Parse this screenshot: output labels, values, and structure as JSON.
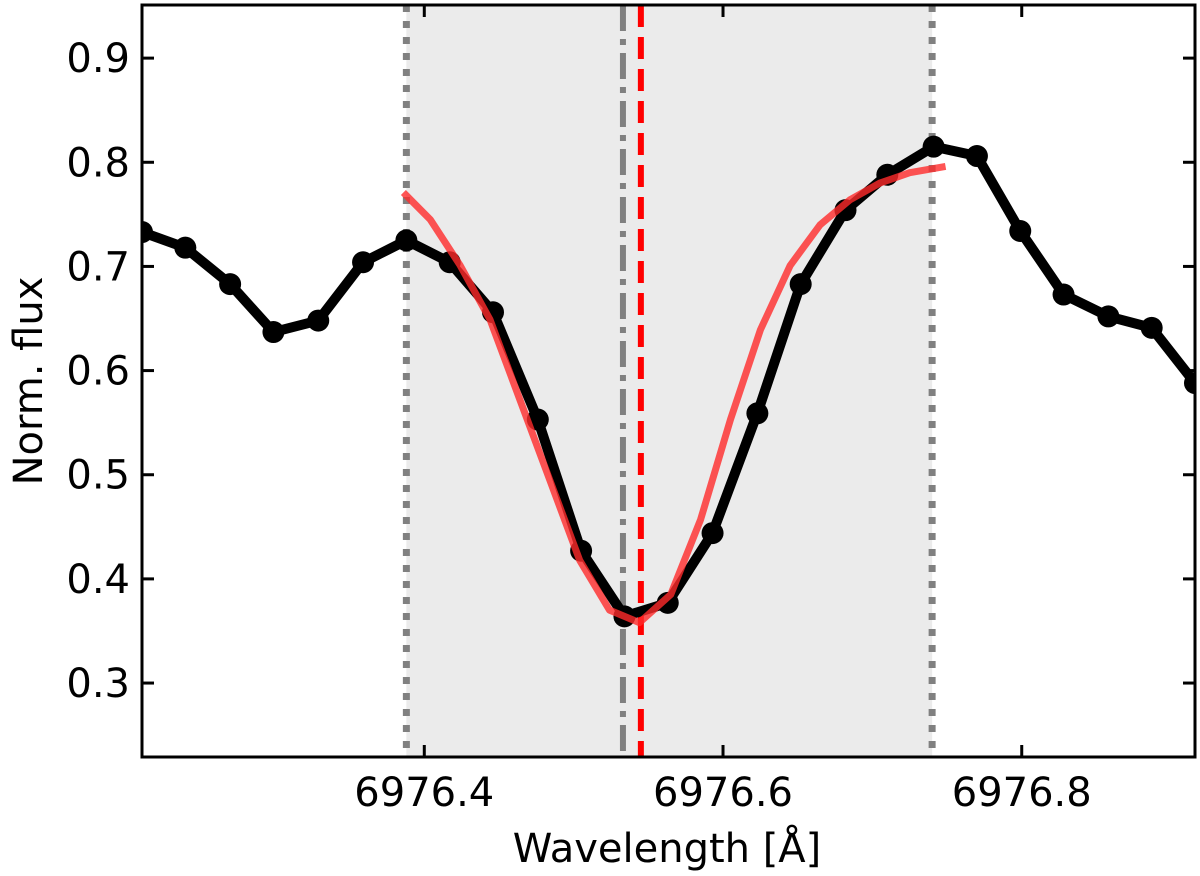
{
  "chart_data": {
    "type": "line",
    "xlabel": "Wavelength [Å]",
    "ylabel": "Norm. flux",
    "xlim": [
      6976.211,
      6976.916
    ],
    "ylim": [
      0.229,
      0.951
    ],
    "xticks": [
      6976.4,
      6976.6,
      6976.8
    ],
    "yticks": [
      0.3,
      0.4,
      0.5,
      0.6,
      0.7,
      0.8,
      0.9
    ],
    "span": {
      "x": [
        6976.388,
        6976.74
      ],
      "color": "#ebebeb"
    },
    "vlines": [
      {
        "x": 6976.388,
        "color": "#808080",
        "style": "dotted"
      },
      {
        "x": 6976.74,
        "color": "#808080",
        "style": "dotted"
      },
      {
        "x": 6976.533,
        "color": "#808080",
        "style": "dashdot"
      },
      {
        "x": 6976.545,
        "color": "#ff0000",
        "style": "dashed"
      }
    ],
    "series": [
      {
        "color": "#000000",
        "markers": true,
        "x": [
          6976.211,
          6976.24,
          6976.27,
          6976.299,
          6976.329,
          6976.359,
          6976.388,
          6976.417,
          6976.446,
          6976.476,
          6976.505,
          6976.534,
          6976.563,
          6976.593,
          6976.623,
          6976.652,
          6976.682,
          6976.71,
          6976.741,
          6976.77,
          6976.799,
          6976.828,
          6976.858,
          6976.887,
          6976.916
        ],
        "values": [
          0.733,
          0.718,
          0.683,
          0.637,
          0.648,
          0.704,
          0.725,
          0.704,
          0.656,
          0.553,
          0.427,
          0.364,
          0.377,
          0.444,
          0.559,
          0.683,
          0.754,
          0.788,
          0.815,
          0.806,
          0.734,
          0.673,
          0.652,
          0.641,
          0.588
        ]
      },
      {
        "color": "#ff2a2a",
        "markers": false,
        "x": [
          6976.386,
          6976.404,
          6976.424,
          6976.444,
          6976.464,
          6976.484,
          6976.504,
          6976.524,
          6976.544,
          6976.565,
          6976.585,
          6976.605,
          6976.625,
          6976.645,
          6976.665,
          6976.685,
          6976.705,
          6976.725,
          6976.749
        ],
        "values": [
          0.771,
          0.745,
          0.701,
          0.649,
          0.572,
          0.495,
          0.418,
          0.37,
          0.358,
          0.385,
          0.457,
          0.553,
          0.639,
          0.701,
          0.74,
          0.764,
          0.78,
          0.79,
          0.796
        ]
      }
    ]
  }
}
